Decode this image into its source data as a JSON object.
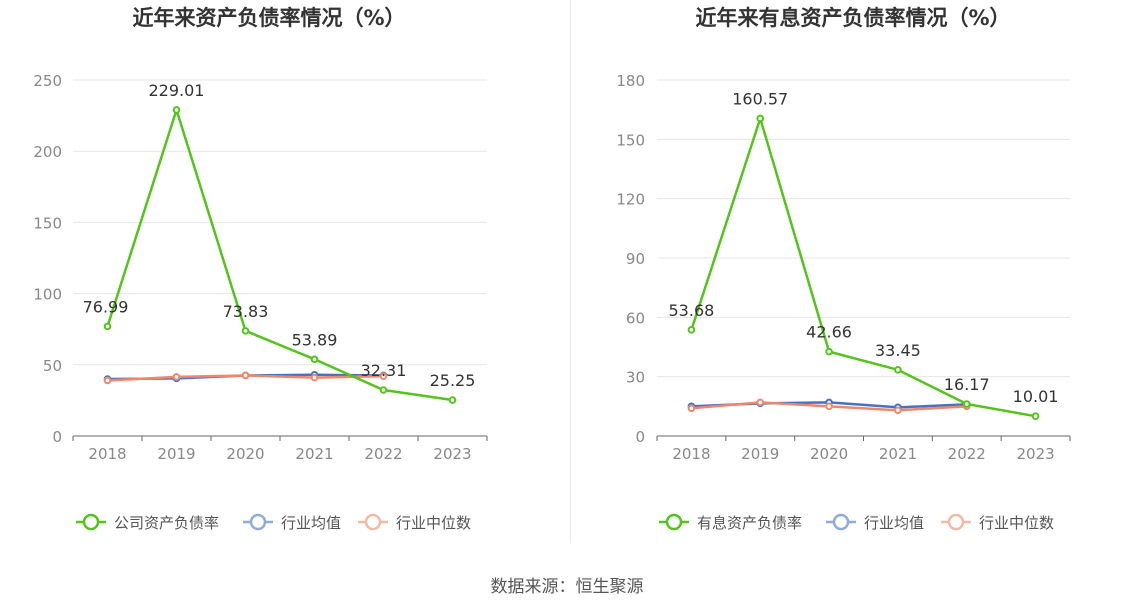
{
  "source_text": "数据来源：恒生聚源",
  "colors": {
    "company": "#52c41a",
    "industry_avg": "#4472c4",
    "industry_avg_legend": "#8faadc",
    "industry_median": "#f0876a",
    "industry_median_legend": "#f4b9a4",
    "title": "#333333",
    "axis_text": "#888888",
    "label_text": "#333333",
    "grid": "#e5e5e5"
  },
  "chart_data": [
    {
      "type": "line",
      "title": "近年来资产负债率情况（%）",
      "xlabel": "",
      "ylabel": "",
      "categories": [
        "2018",
        "2019",
        "2020",
        "2021",
        "2022",
        "2023"
      ],
      "ylim": [
        0,
        250
      ],
      "yticks": [
        0,
        50,
        100,
        150,
        200,
        250
      ],
      "grid": true,
      "legend_position": "bottom",
      "series": [
        {
          "name": "公司资产负债率",
          "key": "company",
          "values": [
            76.99,
            229.01,
            73.83,
            53.89,
            32.31,
            25.25
          ],
          "labels": [
            "76.99",
            "229.01",
            "73.83",
            "53.89",
            "32.31",
            "25.25"
          ]
        },
        {
          "name": "行业均值",
          "key": "industry_avg",
          "values": [
            40.0,
            40.5,
            42.5,
            43.0,
            42.5,
            null
          ]
        },
        {
          "name": "行业中位数",
          "key": "industry_median",
          "values": [
            39.0,
            41.5,
            42.5,
            41.0,
            42.0,
            null
          ]
        }
      ]
    },
    {
      "type": "line",
      "title": "近年来有息资产负债率情况（%）",
      "xlabel": "",
      "ylabel": "",
      "categories": [
        "2018",
        "2019",
        "2020",
        "2021",
        "2022",
        "2023"
      ],
      "ylim": [
        0,
        180
      ],
      "yticks": [
        0,
        30,
        60,
        90,
        120,
        150,
        180
      ],
      "grid": true,
      "legend_position": "bottom",
      "series": [
        {
          "name": "有息资产负债率",
          "key": "company",
          "values": [
            53.68,
            160.57,
            42.66,
            33.45,
            16.17,
            10.01
          ],
          "labels": [
            "53.68",
            "160.57",
            "42.66",
            "33.45",
            "16.17",
            "10.01"
          ]
        },
        {
          "name": "行业均值",
          "key": "industry_avg",
          "values": [
            15.0,
            16.5,
            17.0,
            14.5,
            16.0,
            null
          ]
        },
        {
          "name": "行业中位数",
          "key": "industry_median",
          "values": [
            14.0,
            17.0,
            15.0,
            13.0,
            15.0,
            null
          ]
        }
      ]
    }
  ]
}
